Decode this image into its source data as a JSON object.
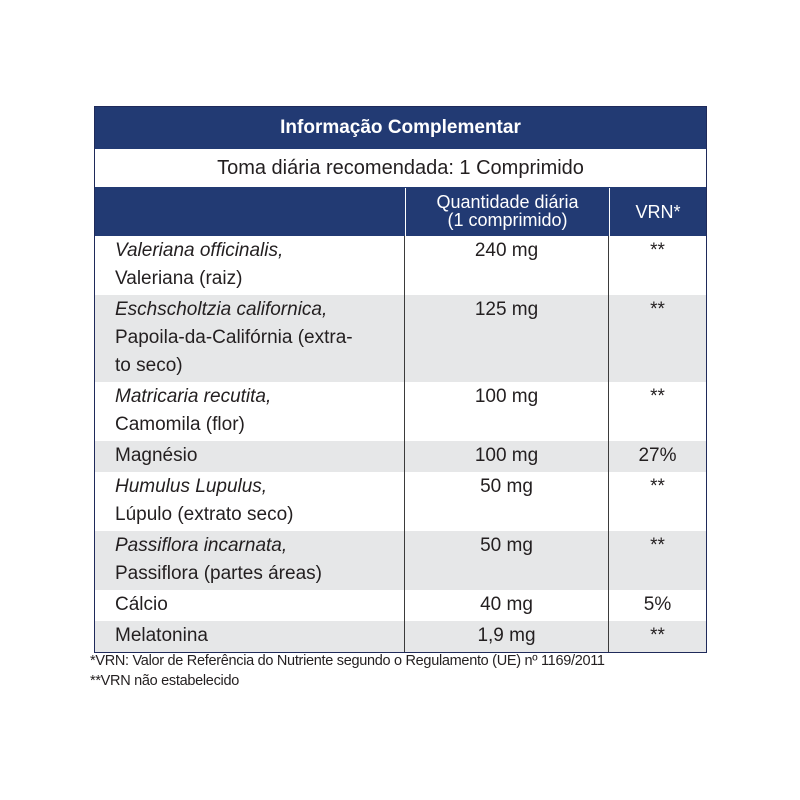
{
  "table": {
    "title": "Informação Complementar",
    "dose": "Toma diária recomendada: 1 Comprimido",
    "headers": {
      "ingredient": "",
      "quantity_line1": "Quantidade diária",
      "quantity_line2": "(1 comprimido)",
      "vrn": "VRN*"
    },
    "rows": [
      {
        "name_italic": "Valeriana officinalis,",
        "name_line2": "Valeriana (raiz)",
        "quantity": "240 mg",
        "vrn": "**"
      },
      {
        "name_italic": "Eschscholtzia californica,",
        "name_line2": "Papoila-da-Califórnia (extra-",
        "name_line3": "to seco)",
        "quantity": "125 mg",
        "vrn": "**"
      },
      {
        "name_italic": "Matricaria recutita,",
        "name_line2": "Camomila (flor)",
        "quantity": "100 mg",
        "vrn": "**"
      },
      {
        "name": "Magnésio",
        "quantity": "100 mg",
        "vrn": "27%"
      },
      {
        "name_italic": "Humulus Lupulus,",
        "name_line2": "Lúpulo (extrato seco)",
        "quantity": "50 mg",
        "vrn": "**"
      },
      {
        "name_italic": "Passiflora incarnata,",
        "name_line2": "Passiflora (partes áreas)",
        "quantity": "50 mg",
        "vrn": "**"
      },
      {
        "name": "Cálcio",
        "quantity": "40 mg",
        "vrn": "5%"
      },
      {
        "name": "Melatonina",
        "quantity": "1,9 mg",
        "vrn": "**"
      }
    ]
  },
  "footnotes": {
    "note1": "*VRN: Valor de Referência do Nutriente segundo o Regulamento (UE) nº 1169/2011",
    "note2": "**VRN não estabelecido"
  },
  "colors": {
    "header_blue": "#223a73",
    "alt_row_gray": "#e6e7e8"
  }
}
